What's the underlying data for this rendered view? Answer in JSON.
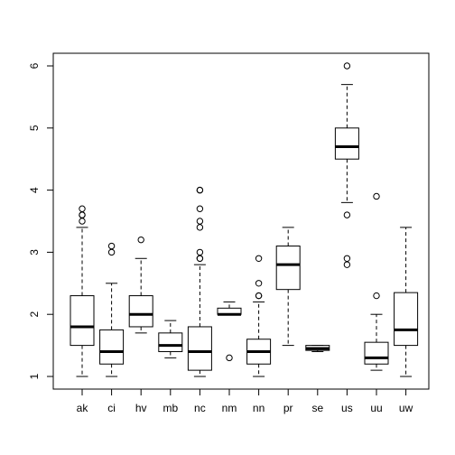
{
  "chart_data": {
    "type": "boxplot",
    "title": "",
    "xlabel": "",
    "ylabel": "",
    "ylim": [
      1,
      6
    ],
    "y_ticks": [
      "1",
      "2",
      "3",
      "4",
      "5",
      "6"
    ],
    "grid": false,
    "categories": [
      "ak",
      "ci",
      "hv",
      "mb",
      "nc",
      "nm",
      "nn",
      "pr",
      "se",
      "us",
      "uu",
      "uw"
    ],
    "boxes": [
      {
        "name": "ak",
        "whisker_low": 1.0,
        "q1": 1.5,
        "median": 1.8,
        "q3": 2.3,
        "whisker_high": 3.4,
        "outliers": [
          3.5,
          3.6,
          3.6,
          3.7
        ]
      },
      {
        "name": "ci",
        "whisker_low": 1.0,
        "q1": 1.2,
        "median": 1.4,
        "q3": 1.75,
        "whisker_high": 2.5,
        "outliers": [
          3.0,
          3.1
        ]
      },
      {
        "name": "hv",
        "whisker_low": 1.7,
        "q1": 1.8,
        "median": 2.0,
        "q3": 2.3,
        "whisker_high": 2.9,
        "outliers": [
          3.2
        ]
      },
      {
        "name": "mb",
        "whisker_low": 1.3,
        "q1": 1.4,
        "median": 1.5,
        "q3": 1.7,
        "whisker_high": 1.9,
        "outliers": []
      },
      {
        "name": "nc",
        "whisker_low": 1.0,
        "q1": 1.1,
        "median": 1.4,
        "q3": 1.8,
        "whisker_high": 2.8,
        "outliers": [
          2.9,
          2.9,
          3.0,
          3.4,
          3.5,
          3.7,
          4.0,
          4.0
        ]
      },
      {
        "name": "nm",
        "whisker_low": 2.0,
        "q1": 2.0,
        "median": 2.0,
        "q3": 2.1,
        "whisker_high": 2.2,
        "outliers": [
          1.3
        ]
      },
      {
        "name": "nn",
        "whisker_low": 1.0,
        "q1": 1.2,
        "median": 1.4,
        "q3": 1.6,
        "whisker_high": 2.2,
        "outliers": [
          2.3,
          2.3,
          2.5,
          2.9
        ]
      },
      {
        "name": "pr",
        "whisker_low": 1.5,
        "q1": 2.4,
        "median": 2.8,
        "q3": 3.1,
        "whisker_high": 3.4,
        "outliers": []
      },
      {
        "name": "se",
        "whisker_low": 1.4,
        "q1": 1.42,
        "median": 1.45,
        "q3": 1.5,
        "whisker_high": 1.5,
        "outliers": []
      },
      {
        "name": "us",
        "whisker_low": 3.8,
        "q1": 4.5,
        "median": 4.7,
        "q3": 5.0,
        "whisker_high": 5.7,
        "outliers": [
          2.8,
          2.9,
          3.6,
          6.0
        ]
      },
      {
        "name": "uu",
        "whisker_low": 1.1,
        "q1": 1.2,
        "median": 1.3,
        "q3": 1.55,
        "whisker_high": 2.0,
        "outliers": [
          2.3,
          3.9
        ]
      },
      {
        "name": "uw",
        "whisker_low": 1.0,
        "q1": 1.5,
        "median": 1.75,
        "q3": 2.35,
        "whisker_high": 3.4,
        "outliers": []
      }
    ]
  }
}
